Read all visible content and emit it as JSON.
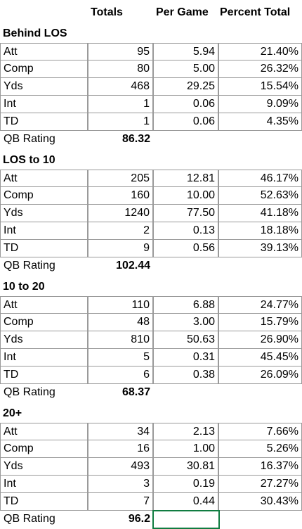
{
  "headers": {
    "totals": "Totals",
    "per_game": "Per Game",
    "percent_total": "Percent Total"
  },
  "sections": [
    {
      "title": "Behind LOS",
      "rows": [
        {
          "label": "Att",
          "total": "95",
          "per_game": "5.94",
          "percent": "21.40%"
        },
        {
          "label": "Comp",
          "total": "80",
          "per_game": "5.00",
          "percent": "26.32%"
        },
        {
          "label": "Yds",
          "total": "468",
          "per_game": "29.25",
          "percent": "15.54%"
        },
        {
          "label": "Int",
          "total": "1",
          "per_game": "0.06",
          "percent": "9.09%"
        },
        {
          "label": "TD",
          "total": "1",
          "per_game": "0.06",
          "percent": "4.35%"
        }
      ],
      "rating_label": "QB Rating",
      "rating": "86.32"
    },
    {
      "title": "LOS to 10",
      "rows": [
        {
          "label": "Att",
          "total": "205",
          "per_game": "12.81",
          "percent": "46.17%"
        },
        {
          "label": "Comp",
          "total": "160",
          "per_game": "10.00",
          "percent": "52.63%"
        },
        {
          "label": "Yds",
          "total": "1240",
          "per_game": "77.50",
          "percent": "41.18%"
        },
        {
          "label": "Int",
          "total": "2",
          "per_game": "0.13",
          "percent": "18.18%"
        },
        {
          "label": "TD",
          "total": "9",
          "per_game": "0.56",
          "percent": "39.13%"
        }
      ],
      "rating_label": "QB Rating",
      "rating": "102.44"
    },
    {
      "title": "10 to 20",
      "rows": [
        {
          "label": "Att",
          "total": "110",
          "per_game": "6.88",
          "percent": "24.77%"
        },
        {
          "label": "Comp",
          "total": "48",
          "per_game": "3.00",
          "percent": "15.79%"
        },
        {
          "label": "Yds",
          "total": "810",
          "per_game": "50.63",
          "percent": "26.90%"
        },
        {
          "label": "Int",
          "total": "5",
          "per_game": "0.31",
          "percent": "45.45%"
        },
        {
          "label": "TD",
          "total": "6",
          "per_game": "0.38",
          "percent": "26.09%"
        }
      ],
      "rating_label": "QB Rating",
      "rating": "68.37"
    },
    {
      "title": "20+",
      "rows": [
        {
          "label": "Att",
          "total": "34",
          "per_game": "2.13",
          "percent": "7.66%"
        },
        {
          "label": "Comp",
          "total": "16",
          "per_game": "1.00",
          "percent": "5.26%"
        },
        {
          "label": "Yds",
          "total": "493",
          "per_game": "30.81",
          "percent": "16.37%"
        },
        {
          "label": "Int",
          "total": "3",
          "per_game": "0.19",
          "percent": "27.27%"
        },
        {
          "label": "TD",
          "total": "7",
          "per_game": "0.44",
          "percent": "30.43%"
        }
      ],
      "rating_label": "QB Rating",
      "rating": "96.2"
    }
  ],
  "selection_color": "#107c41"
}
